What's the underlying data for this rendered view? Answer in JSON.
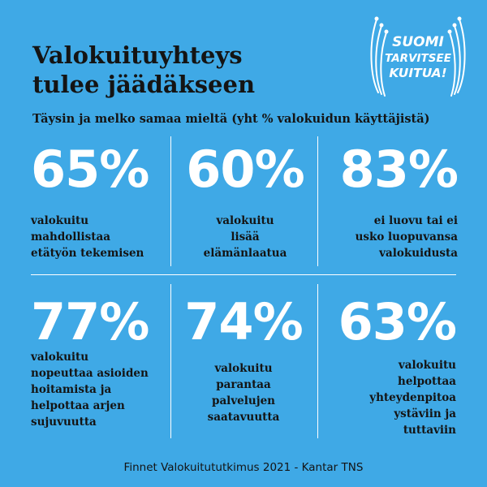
{
  "title": "Valokuituyhteys\ntulee jäädäkseen",
  "subtitle": "Täysin ja melko samaa mieltä (yht % valokuidun käyttäjistä)",
  "logo": {
    "line1": "SUOMI",
    "line2": "TARVITSEE",
    "line3": "KUITUA!"
  },
  "stats": [
    {
      "value": "65%",
      "text": "valokuitu\nmahdollistaa\netätyön tekemisen"
    },
    {
      "value": "60%",
      "text": "valokuitu\nlisää\nelämänlaatua"
    },
    {
      "value": "83%",
      "text": "ei luovu tai ei\nusko luopuvansa\nvalokuidusta"
    },
    {
      "value": "77%",
      "text": "valokuitu\nnopeuttaa asioiden\nhoitamista ja\nhelpottaa arjen\nsujuvuutta"
    },
    {
      "value": "74%",
      "text": "valokuitu\nparantaa\npalvelujen\nsaatavuutta"
    },
    {
      "value": "63%",
      "text": "valokuitu\nhelpottaa\nyhteydenpitoa\nystäviin ja\ntuttaviin"
    }
  ],
  "footer": "Finnet Valokuitututkimus 2021 - Kantar TNS",
  "colors": {
    "background": "#3fa9e6",
    "percent": "#ffffff",
    "text": "#141414"
  }
}
